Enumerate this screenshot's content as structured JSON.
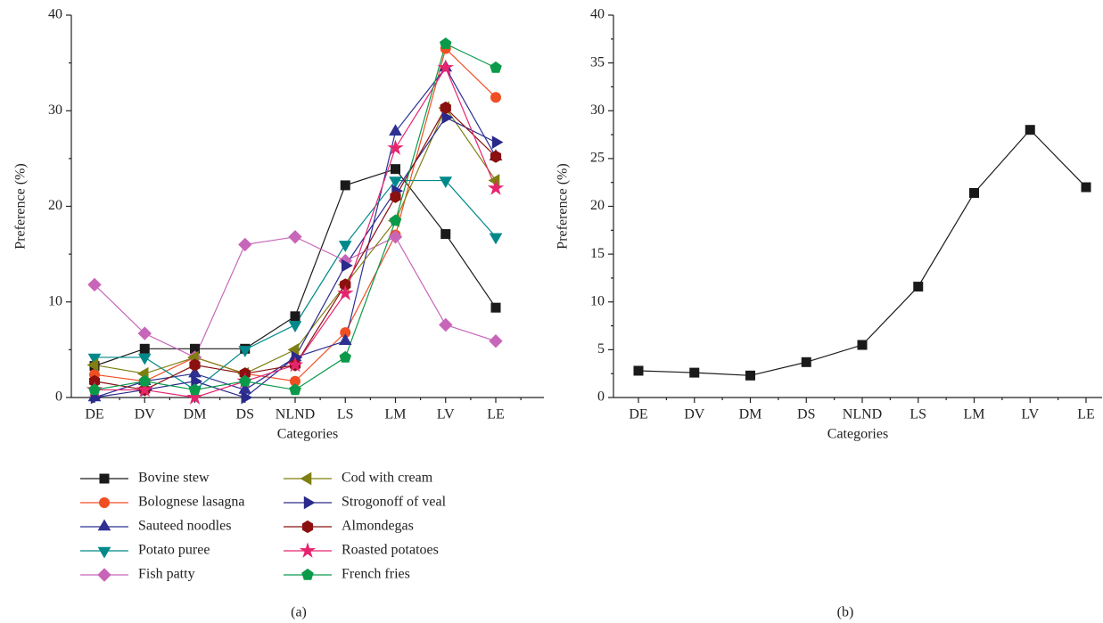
{
  "chart_data": [
    {
      "type": "line",
      "caption": "(a)",
      "x_label": "Categories",
      "y_label": "Preference (%)",
      "categories": [
        "DE",
        "DV",
        "DM",
        "DS",
        "NLND",
        "LS",
        "LM",
        "LV",
        "LE"
      ],
      "ylim": [
        0,
        40
      ],
      "yticks": [
        0,
        10,
        20,
        30,
        40
      ],
      "legend": "bottom",
      "series": [
        {
          "name": "Bovine stew",
          "color": "#1a1a1a",
          "marker": "square",
          "values": [
            3.3,
            5.1,
            5.1,
            5.1,
            8.5,
            22.2,
            23.9,
            17.1,
            9.4
          ]
        },
        {
          "name": "Bolognese lasagna",
          "color": "#f04e23",
          "marker": "circle",
          "values": [
            2.4,
            1.7,
            4.2,
            2.5,
            1.7,
            6.8,
            17.0,
            36.5,
            31.4
          ]
        },
        {
          "name": "Sauteed noodles",
          "color": "#2e3192",
          "marker": "triangle-up",
          "values": [
            0,
            1.7,
            2.5,
            0.8,
            4.2,
            5.9,
            27.8,
            34.5,
            25.2
          ]
        },
        {
          "name": "Potato puree",
          "color": "#00898a",
          "marker": "triangle-down",
          "values": [
            4.2,
            4.2,
            0.8,
            5.0,
            7.6,
            16.0,
            22.7,
            22.7,
            16.8
          ]
        },
        {
          "name": "Fish patty",
          "color": "#c766b8",
          "marker": "diamond",
          "values": [
            11.8,
            6.7,
            4.2,
            16.0,
            16.8,
            14.3,
            16.8,
            7.6,
            5.9
          ]
        },
        {
          "name": "Cod with cream",
          "color": "#7f7f12",
          "marker": "triangle-left",
          "values": [
            3.4,
            2.5,
            4.2,
            2.5,
            5.0,
            11.8,
            18.5,
            30.3,
            22.7
          ]
        },
        {
          "name": "Strogonoff of veal",
          "color": "#2a2a8c",
          "marker": "triangle-right",
          "values": [
            0,
            0.8,
            1.7,
            0,
            4.2,
            13.8,
            21.6,
            29.3,
            26.7
          ]
        },
        {
          "name": "Almondegas",
          "color": "#8b1010",
          "marker": "hexagon",
          "values": [
            1.7,
            0.8,
            3.4,
            2.5,
            3.4,
            11.8,
            21.0,
            30.3,
            25.2
          ]
        },
        {
          "name": "Roasted potatoes",
          "color": "#e6246e",
          "marker": "star",
          "values": [
            0.8,
            0.8,
            0,
            1.7,
            3.4,
            10.9,
            26.1,
            34.5,
            21.9
          ]
        },
        {
          "name": "French fries",
          "color": "#0a9a4a",
          "marker": "pentagon",
          "values": [
            0.8,
            1.7,
            0.8,
            1.7,
            0.8,
            4.2,
            18.5,
            37.0,
            34.5
          ]
        }
      ]
    },
    {
      "type": "line",
      "caption": "(b)",
      "x_label": "Categories",
      "y_label": "Preference (%)",
      "categories": [
        "DE",
        "DV",
        "DM",
        "DS",
        "NLND",
        "LS",
        "LM",
        "LV",
        "LE"
      ],
      "ylim": [
        0,
        40
      ],
      "yticks": [
        0,
        5,
        10,
        15,
        20,
        25,
        30,
        35,
        40
      ],
      "series": [
        {
          "color": "#1a1a1a",
          "marker": "square",
          "values": [
            2.8,
            2.6,
            2.3,
            3.7,
            5.5,
            11.6,
            21.4,
            28.0,
            22.0
          ]
        }
      ]
    }
  ]
}
